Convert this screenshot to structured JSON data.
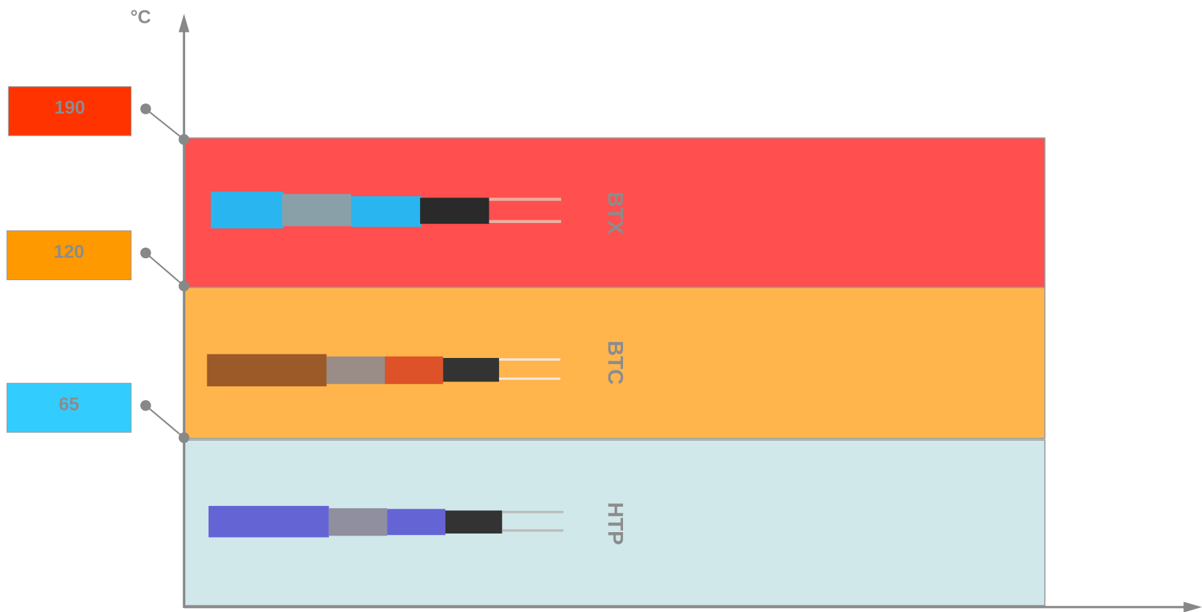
{
  "axis": {
    "unit": "°C"
  },
  "levels": [
    {
      "label": "190"
    },
    {
      "label": "120"
    },
    {
      "label": "65"
    }
  ],
  "bands": [
    {
      "label": "BTX"
    },
    {
      "label": "BTC"
    },
    {
      "label": "HTP"
    }
  ]
}
